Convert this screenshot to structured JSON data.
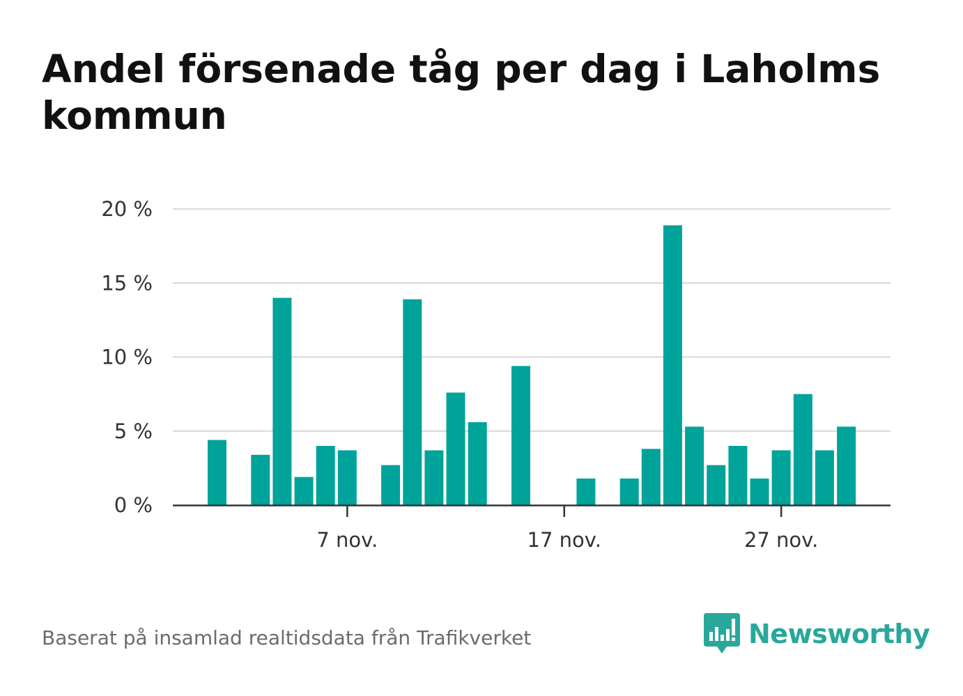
{
  "title": "Andel försenade tåg per dag i Laholms kommun",
  "source": "Baserat på insamlad realtidsdata från Trafikverket",
  "brand": {
    "name": "Newsworthy",
    "icon": "bar-chart-speech-bubble-icon",
    "color": "#2aa79b"
  },
  "colors": {
    "bar": "#00a39a",
    "grid": "#dddddd",
    "axis": "#333333"
  },
  "chart_data": {
    "type": "bar",
    "title": "Andel försenade tåg per dag i Laholms kommun",
    "xlabel": "",
    "ylabel": "",
    "ylim": [
      0,
      20
    ],
    "y_ticks": [
      0,
      5,
      10,
      15,
      20
    ],
    "y_tick_labels": [
      "0 %",
      "5 %",
      "10 %",
      "15 %",
      "20 %"
    ],
    "x_ticks": [
      {
        "day": 7,
        "label": "7 nov."
      },
      {
        "day": 17,
        "label": "17 nov."
      },
      {
        "day": 27,
        "label": "27 nov."
      }
    ],
    "grid": true,
    "series": [
      {
        "x": [
          1,
          2,
          3,
          4,
          5,
          6,
          7,
          8,
          9,
          10,
          11,
          12,
          13,
          14,
          15,
          16,
          17,
          18,
          19,
          20,
          21,
          22,
          23,
          24,
          25,
          26,
          27,
          28,
          29,
          30
        ],
        "values": [
          4.4,
          0,
          3.4,
          14.0,
          1.9,
          4.0,
          3.7,
          0,
          2.7,
          13.9,
          3.7,
          7.6,
          5.6,
          0,
          9.4,
          0,
          0,
          1.8,
          0,
          1.8,
          3.8,
          18.9,
          5.3,
          2.7,
          4.0,
          1.8,
          3.7,
          7.5,
          3.7,
          5.3
        ]
      }
    ]
  }
}
